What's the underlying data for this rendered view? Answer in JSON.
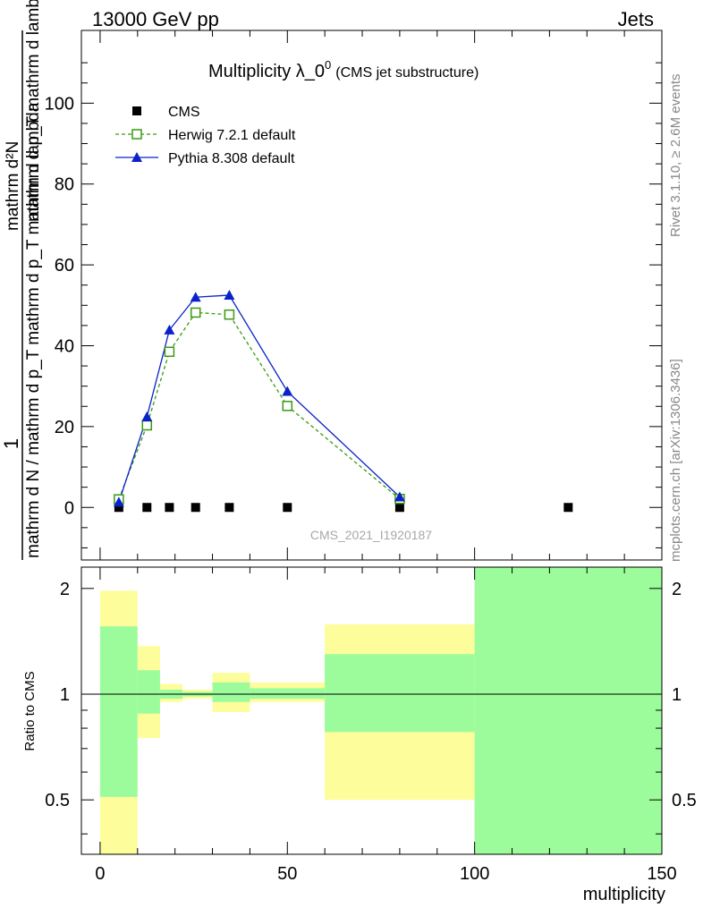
{
  "header": {
    "left": "13000 GeV pp",
    "right": "Jets"
  },
  "side_text": {
    "rivet": "Rivet 3.1.10, ≥ 2.6M events",
    "mcplots": "mcplots.cern.ch [arXiv:1306.3436]"
  },
  "chart_data": {
    "type": "line",
    "title": "Multiplicity λ_0",
    "title_superscript": "0",
    "subtitle": "(CMS jet substructure)",
    "watermark": "CMS_2021_I1920187",
    "ylabel_main": {
      "numerator": "1",
      "denominator": "mathrm d N / mathrm d p_T mathrm d p_T mathrm d lambda",
      "frac_num": "mathrm d²N",
      "frac_den": "mathrm d p_T mathrm d lambda"
    },
    "ylabel_ratio": "Ratio to CMS",
    "xlabel": "multiplicity",
    "xlim": [
      -5,
      150
    ],
    "ylim_main": [
      -13,
      118
    ],
    "ylim_ratio": [
      0.35,
      2.3
    ],
    "x_ticks": [
      "0",
      "50",
      "100",
      "150"
    ],
    "y_ticks_main": [
      "0",
      "20",
      "40",
      "60",
      "80",
      "100"
    ],
    "y_ticks_ratio": [
      "0.5",
      "1",
      "2"
    ],
    "legend_position": "top-left",
    "series": [
      {
        "name": "CMS",
        "marker": "filled-square",
        "color": "#000000",
        "x": [
          5,
          12.5,
          18.5,
          25.5,
          34.5,
          50,
          80,
          125
        ],
        "y": [
          0,
          0,
          0,
          0,
          0,
          0,
          0,
          0
        ]
      },
      {
        "name": "Herwig 7.2.1 default",
        "marker": "open-square",
        "line": "dashed",
        "color": "#3a9a12",
        "x": [
          5,
          12.5,
          18.5,
          25.5,
          34.5,
          50,
          80
        ],
        "y": [
          2.0,
          20.3,
          38.5,
          48.2,
          47.7,
          25.1,
          2.1
        ]
      },
      {
        "name": "Pythia 8.308 default",
        "marker": "filled-triangle",
        "line": "solid",
        "color": "#0a22c8",
        "x": [
          5,
          12.5,
          18.5,
          25.5,
          34.5,
          50,
          80
        ],
        "y": [
          1.3,
          22.4,
          43.9,
          52.0,
          52.5,
          28.7,
          2.6
        ]
      }
    ],
    "ratio_bands": [
      {
        "x0": 0,
        "x1": 10,
        "green": [
          0.51,
          1.56
        ],
        "yellow": [
          0.3,
          1.97
        ]
      },
      {
        "x0": 10,
        "x1": 16,
        "green": [
          0.88,
          1.17
        ],
        "yellow": [
          0.75,
          1.37
        ]
      },
      {
        "x0": 16,
        "x1": 22,
        "green": [
          0.97,
          1.03
        ],
        "yellow": [
          0.95,
          1.07
        ]
      },
      {
        "x0": 22,
        "x1": 30,
        "green": [
          0.985,
          1.015
        ],
        "yellow": [
          0.97,
          1.03
        ]
      },
      {
        "x0": 30,
        "x1": 40,
        "green": [
          0.95,
          1.08
        ],
        "yellow": [
          0.89,
          1.15
        ]
      },
      {
        "x0": 40,
        "x1": 60,
        "green": [
          0.97,
          1.04
        ],
        "yellow": [
          0.95,
          1.08
        ]
      },
      {
        "x0": 60,
        "x1": 100,
        "green": [
          0.78,
          1.3
        ],
        "yellow": [
          0.5,
          1.58
        ]
      },
      {
        "x0": 100,
        "x1": 150,
        "green": [
          0.3,
          2.5
        ],
        "yellow": [
          0.3,
          2.5
        ]
      }
    ],
    "colors": {
      "band_green": "#9cfc9c",
      "band_yellow": "#fdfd9b"
    }
  }
}
